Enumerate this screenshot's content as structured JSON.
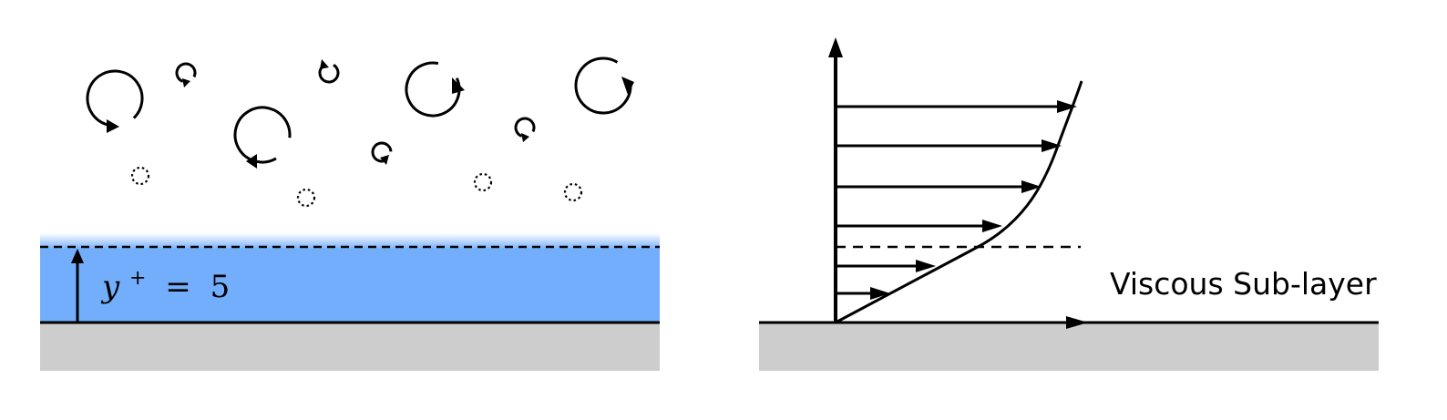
{
  "colors": {
    "sublayer": "#72aefb",
    "wall": "#cdcdcd",
    "ink": "#000000",
    "background": "#ffffff"
  },
  "left_panel": {
    "annotation": {
      "variable": "y",
      "superscript": "+",
      "equals": "=",
      "value": "5"
    },
    "wall_distance_yplus": 5
  },
  "right_panel": {
    "label": "Viscous Sub-layer",
    "profile_arrow_count": 6
  },
  "icons": {
    "eddy": "circular-arrow-icon",
    "small_eddy": "dotted-circle-icon"
  }
}
